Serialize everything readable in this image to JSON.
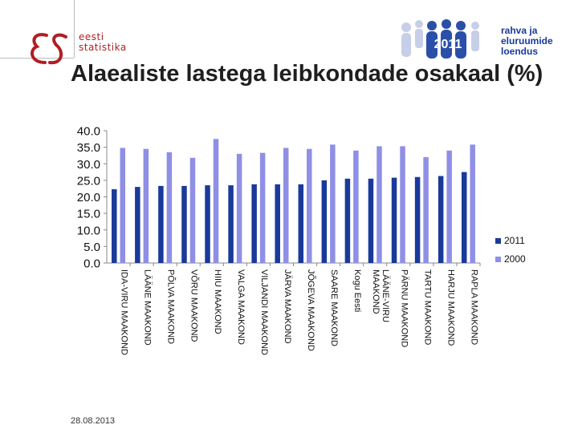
{
  "header": {
    "brand_text": "eesti statistika",
    "census_text": "rahva ja eluruumide loendus",
    "census_year": "2011"
  },
  "title": "Alaealiste lastega leibkondade osakaal (%)",
  "footer": {
    "date": "28.08.2013"
  },
  "colors": {
    "series_2011": "#1a3a9a",
    "series_2000": "#8f8fe6",
    "brand_red": "#b01e23"
  },
  "chart_data": {
    "type": "bar",
    "title": "Alaealiste lastega leibkondade osakaal (%)",
    "categories": [
      "IDA-VIRU MAAKOND",
      "LÄÄNE MAAKOND",
      "PÕLVA MAAKOND",
      "VÕRU MAAKOND",
      "HIIU MAAKOND",
      "VALGA MAAKOND",
      "VILJANDI MAAKOND",
      "JÄRVA MAAKOND",
      "JÕGEVA MAAKOND",
      "SAARE MAAKOND",
      "Kogu Eesti",
      "LÄÄNE-VIRU MAAKOND",
      "PÄRNU MAAKOND",
      "TARTU MAAKOND",
      "HARJU MAAKOND",
      "RAPLA MAAKOND"
    ],
    "category_lines": [
      [
        "IDA-VIRU MAAKOND"
      ],
      [
        "LÄÄNE MAAKOND"
      ],
      [
        "PÕLVA MAAKOND"
      ],
      [
        "VÕRU MAAKOND"
      ],
      [
        "HIIU MAAKOND"
      ],
      [
        "VALGA MAAKOND"
      ],
      [
        "VILJANDI MAAKOND"
      ],
      [
        "JÄRVA MAAKOND"
      ],
      [
        "JÕGEVA MAAKOND"
      ],
      [
        "SAARE MAAKOND"
      ],
      [
        "Kogu Eesti"
      ],
      [
        "LÄÄNE-VIRU",
        "MAAKOND"
      ],
      [
        "PÄRNU MAAKOND"
      ],
      [
        "TARTU MAAKOND"
      ],
      [
        "HARJU MAAKOND"
      ],
      [
        "RAPLA MAAKOND"
      ]
    ],
    "series": [
      {
        "name": "2011",
        "values": [
          22.3,
          23.0,
          23.3,
          23.3,
          23.5,
          23.5,
          23.8,
          23.8,
          23.8,
          25.0,
          25.5,
          25.5,
          25.8,
          26.0,
          26.3,
          27.5
        ]
      },
      {
        "name": "2000",
        "values": [
          34.8,
          34.5,
          33.5,
          31.8,
          37.5,
          33.0,
          33.3,
          34.8,
          34.5,
          35.8,
          34.0,
          35.3,
          35.3,
          32.0,
          34.0,
          35.8
        ]
      }
    ],
    "ylim": [
      0,
      40
    ],
    "yticks": [
      "0.0",
      "5.0",
      "10.0",
      "15.0",
      "20.0",
      "25.0",
      "30.0",
      "35.0",
      "40.0"
    ],
    "grid": false,
    "legend": "right"
  }
}
